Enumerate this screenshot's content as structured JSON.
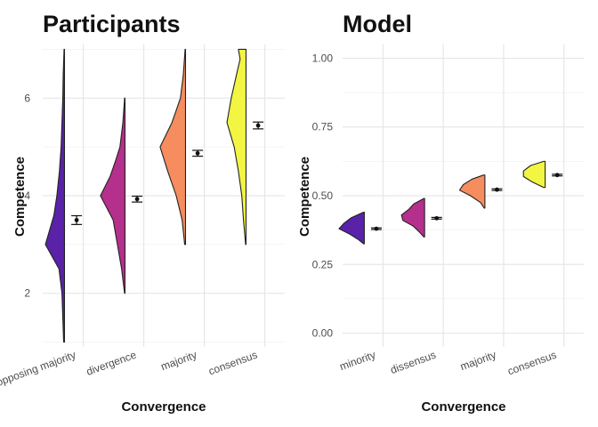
{
  "chart_data": [
    {
      "type": "violin",
      "title": "Participants",
      "xlabel": "Convergence",
      "ylabel": "Competence",
      "ylim": [
        0.9,
        7.1
      ],
      "yticks": [
        2,
        4,
        6
      ],
      "yticklabels": [
        "2",
        "4",
        "6"
      ],
      "grid": true,
      "categories": [
        "opposing majority",
        "divergence",
        "majority",
        "consensus"
      ],
      "colors": [
        "#5a22a8",
        "#b52f8c",
        "#f58d5f",
        "#f2f542"
      ],
      "violins": [
        {
          "density": [
            [
              1.0,
              0.02
            ],
            [
              1.5,
              0.04
            ],
            [
              2.0,
              0.06
            ],
            [
              2.5,
              0.13
            ],
            [
              3.0,
              0.45
            ],
            [
              3.3,
              0.35
            ],
            [
              3.6,
              0.25
            ],
            [
              4.0,
              0.18
            ],
            [
              4.5,
              0.12
            ],
            [
              5.0,
              0.08
            ],
            [
              5.5,
              0.06
            ],
            [
              6.0,
              0.04
            ],
            [
              6.5,
              0.03
            ],
            [
              7.0,
              0.01
            ]
          ]
        },
        {
          "density": [
            [
              2.0,
              0.01
            ],
            [
              2.5,
              0.08
            ],
            [
              3.0,
              0.18
            ],
            [
              3.5,
              0.28
            ],
            [
              4.0,
              0.58
            ],
            [
              4.4,
              0.35
            ],
            [
              4.7,
              0.23
            ],
            [
              5.0,
              0.12
            ],
            [
              5.5,
              0.05
            ],
            [
              6.0,
              0.01
            ]
          ]
        },
        {
          "density": [
            [
              3.0,
              0.02
            ],
            [
              3.5,
              0.08
            ],
            [
              4.0,
              0.22
            ],
            [
              4.5,
              0.42
            ],
            [
              5.0,
              0.6
            ],
            [
              5.5,
              0.32
            ],
            [
              6.0,
              0.12
            ],
            [
              6.5,
              0.05
            ],
            [
              7.0,
              0.01
            ]
          ]
        },
        {
          "density": [
            [
              3.0,
              0.01
            ],
            [
              3.5,
              0.06
            ],
            [
              4.0,
              0.1
            ],
            [
              4.5,
              0.18
            ],
            [
              5.0,
              0.28
            ],
            [
              5.5,
              0.45
            ],
            [
              6.0,
              0.35
            ],
            [
              6.5,
              0.22
            ],
            [
              6.8,
              0.14
            ],
            [
              7.0,
              0.18
            ]
          ]
        }
      ],
      "means": [
        3.5,
        3.93,
        4.87,
        5.44
      ],
      "errors": [
        0.09,
        0.06,
        0.06,
        0.07
      ]
    },
    {
      "type": "violin",
      "title": "Model",
      "xlabel": "Convergence",
      "ylabel": "Competence",
      "ylim": [
        -0.05,
        1.05
      ],
      "yticks": [
        0,
        0.25,
        0.5,
        0.75,
        1
      ],
      "yticklabels": [
        "0.00",
        "0.25",
        "0.50",
        "0.75",
        "1.00"
      ],
      "grid": true,
      "categories": [
        "minority",
        "dissensus",
        "majority",
        "consensus"
      ],
      "colors": [
        "#5a22a8",
        "#b52f8c",
        "#f58d5f",
        "#f2f542"
      ],
      "violins": [
        {
          "density": [
            [
              0.325,
              0.01
            ],
            [
              0.34,
              0.08
            ],
            [
              0.36,
              0.2
            ],
            [
              0.38,
              0.35
            ],
            [
              0.4,
              0.28
            ],
            [
              0.42,
              0.18
            ],
            [
              0.44,
              0.01
            ]
          ]
        },
        {
          "density": [
            [
              0.35,
              0.01
            ],
            [
              0.37,
              0.08
            ],
            [
              0.39,
              0.16
            ],
            [
              0.41,
              0.3
            ],
            [
              0.43,
              0.32
            ],
            [
              0.45,
              0.22
            ],
            [
              0.47,
              0.15
            ],
            [
              0.49,
              0.01
            ]
          ]
        },
        {
          "density": [
            [
              0.455,
              0.01
            ],
            [
              0.475,
              0.06
            ],
            [
              0.5,
              0.2
            ],
            [
              0.52,
              0.35
            ],
            [
              0.54,
              0.3
            ],
            [
              0.56,
              0.18
            ],
            [
              0.575,
              0.02
            ]
          ]
        },
        {
          "density": [
            [
              0.53,
              0.02
            ],
            [
              0.55,
              0.18
            ],
            [
              0.57,
              0.3
            ],
            [
              0.59,
              0.3
            ],
            [
              0.61,
              0.2
            ],
            [
              0.625,
              0.02
            ]
          ]
        }
      ],
      "means": [
        0.38,
        0.418,
        0.522,
        0.575
      ],
      "errors": [
        0.003,
        0.003,
        0.003,
        0.003
      ]
    }
  ]
}
